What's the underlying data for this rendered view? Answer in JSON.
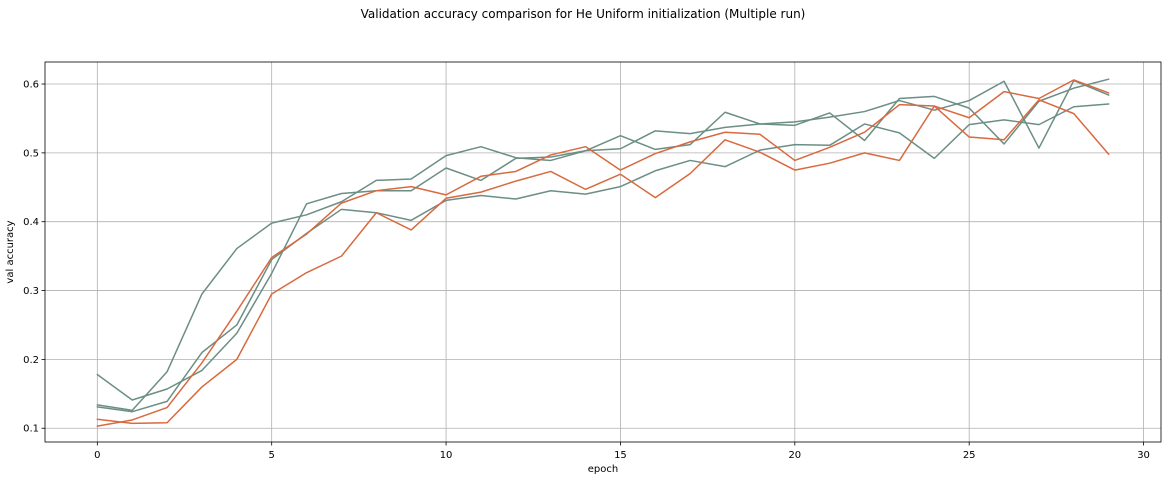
{
  "chart_data": {
    "type": "line",
    "title": "Validation accuracy comparison for He Uniform initialization (Multiple run)",
    "xlabel": "epoch",
    "ylabel": "val accuracy",
    "xlim": [
      -1.5,
      30.5
    ],
    "ylim": [
      0.08,
      0.632
    ],
    "xticks": [
      0,
      5,
      10,
      15,
      20,
      25,
      30
    ],
    "yticks": [
      0.1,
      0.2,
      0.3,
      0.4,
      0.5,
      0.6
    ],
    "grid": true,
    "legend": "none",
    "colors": {
      "teal": "#6b8e85",
      "orange": "#d9693e"
    },
    "x": [
      0,
      1,
      2,
      3,
      4,
      5,
      6,
      7,
      8,
      9,
      10,
      11,
      12,
      13,
      14,
      15,
      16,
      17,
      18,
      19,
      20,
      21,
      22,
      23,
      24,
      25,
      26,
      27,
      28,
      29
    ],
    "series": [
      {
        "color": "#6b8e85",
        "values": [
          0.178,
          0.141,
          0.157,
          0.184,
          0.238,
          0.325,
          0.426,
          0.441,
          0.445,
          0.445,
          0.478,
          0.46,
          0.492,
          0.494,
          0.503,
          0.525,
          0.505,
          0.512,
          0.559,
          0.542,
          0.54,
          0.558,
          0.518,
          0.579,
          0.582,
          0.565,
          0.513,
          0.575,
          0.594,
          0.607
        ]
      },
      {
        "color": "#6b8e85",
        "values": [
          0.134,
          0.126,
          0.182,
          0.295,
          0.361,
          0.398,
          0.41,
          0.429,
          0.46,
          0.462,
          0.496,
          0.509,
          0.493,
          0.489,
          0.503,
          0.506,
          0.532,
          0.528,
          0.537,
          0.542,
          0.545,
          0.552,
          0.56,
          0.576,
          0.562,
          0.576,
          0.604,
          0.507,
          0.605,
          0.584
        ]
      },
      {
        "color": "#6b8e85",
        "values": [
          0.131,
          0.124,
          0.139,
          0.21,
          0.25,
          0.345,
          0.383,
          0.418,
          0.413,
          0.402,
          0.431,
          0.438,
          0.433,
          0.445,
          0.44,
          0.451,
          0.474,
          0.489,
          0.48,
          0.504,
          0.512,
          0.511,
          0.542,
          0.529,
          0.492,
          0.541,
          0.548,
          0.541,
          0.567,
          0.571
        ]
      },
      {
        "color": "#d9693e",
        "values": [
          0.113,
          0.107,
          0.108,
          0.16,
          0.2,
          0.295,
          0.326,
          0.35,
          0.413,
          0.388,
          0.434,
          0.443,
          0.459,
          0.473,
          0.447,
          0.469,
          0.435,
          0.47,
          0.519,
          0.501,
          0.475,
          0.485,
          0.5,
          0.489,
          0.568,
          0.523,
          0.519,
          0.577,
          0.557,
          0.498
        ]
      },
      {
        "color": "#d9693e",
        "values": [
          0.103,
          0.112,
          0.13,
          0.195,
          0.27,
          0.348,
          0.382,
          0.427,
          0.445,
          0.451,
          0.439,
          0.466,
          0.473,
          0.497,
          0.509,
          0.475,
          0.499,
          0.516,
          0.53,
          0.527,
          0.489,
          0.508,
          0.53,
          0.57,
          0.568,
          0.551,
          0.589,
          0.579,
          0.606,
          0.587
        ]
      }
    ]
  }
}
